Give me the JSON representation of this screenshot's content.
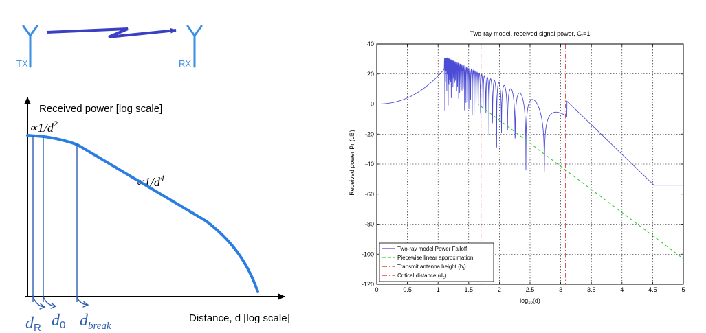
{
  "left_diagram": {
    "tx_label": "TX",
    "rx_label": "RX",
    "y_axis_label": "Received power [log scale]",
    "x_axis_label": "Distance, d [log scale]",
    "near_slope_label": "∝1/d",
    "near_slope_exp": "2",
    "far_slope_label": "∝1/d",
    "far_slope_exp": "4",
    "markers": [
      {
        "base": "d",
        "sub": "R"
      },
      {
        "base": "d",
        "sub": "0"
      },
      {
        "base": "d",
        "sub": "break"
      }
    ],
    "colors": {
      "curve": "#2a7de1",
      "marker": "#2f5fb0",
      "arrow": "#3a3fc4",
      "antenna": "#3a8ee6"
    }
  },
  "chart_data": {
    "type": "line",
    "title_prefix": "Two-ray model, received signal power, G",
    "title_sub": "r",
    "title_suffix": "=1",
    "xlabel_prefix": "log",
    "xlabel_sub": "10",
    "xlabel_suffix": "(d)",
    "ylabel": "Received power Pr (dB)",
    "xlim": [
      0,
      5
    ],
    "ylim": [
      -120,
      40
    ],
    "xticks": [
      0,
      0.5,
      1,
      1.5,
      2,
      2.5,
      3,
      3.5,
      4,
      4.5,
      5
    ],
    "xtick_labels": [
      "0",
      "0.5",
      "1",
      "1.5",
      "2",
      "2.5",
      "3",
      "3.5",
      "4",
      "4.5",
      "5"
    ],
    "yticks": [
      -120,
      -100,
      -80,
      -60,
      -40,
      -20,
      0,
      20,
      40
    ],
    "ytick_labels": [
      "-120",
      "-100",
      "-80",
      "-60",
      "-40",
      "-20",
      "0",
      "20",
      "40"
    ],
    "grid": true,
    "legend_position": "bottom-left",
    "series": [
      {
        "name": "Two-ray model Power Falloff",
        "color": "#4b4bd6",
        "style": "solid",
        "kind": "tworay"
      },
      {
        "name": "Piecewise linear approximation",
        "color": "#33cc33",
        "style": "dashed",
        "kind": "piecewise",
        "points": [
          [
            0,
            0
          ],
          [
            1.65,
            0
          ],
          [
            5,
            -103
          ]
        ]
      },
      {
        "name": "Transmit antenna height (h",
        "name_sub": "t",
        "name_suffix": ")",
        "color": "#cc2222",
        "style": "dashdot",
        "kind": "vline",
        "x": 1.7
      },
      {
        "name": "Critical distance (d",
        "name_sub": "c",
        "name_suffix": ")",
        "color": "#cc2222",
        "style": "dashdot",
        "kind": "vline",
        "x": 3.08
      }
    ]
  }
}
